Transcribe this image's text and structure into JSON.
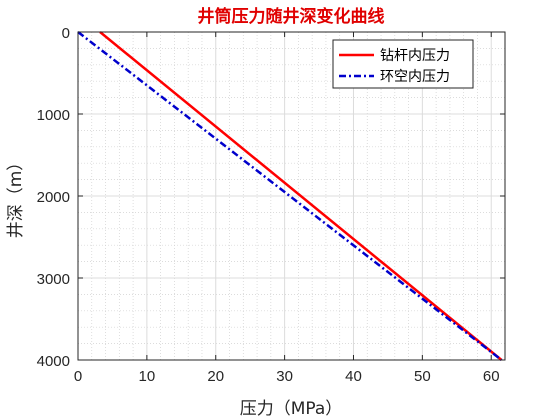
{
  "chart_data": {
    "type": "line",
    "title": "井筒压力随井深变化曲线",
    "xlabel": "压力（MPa）",
    "ylabel": "井深（m）",
    "xlim": [
      0,
      62
    ],
    "ylim": [
      0,
      4000
    ],
    "y_reversed": true,
    "x_ticks": [
      0,
      10,
      20,
      30,
      40,
      50,
      60
    ],
    "y_ticks": [
      0,
      1000,
      2000,
      3000,
      4000
    ],
    "grid": true,
    "minor_grid": true,
    "legend_position": "top-right",
    "series": [
      {
        "name": "钻杆内压力",
        "color": "#ff0000",
        "line_style": "solid",
        "points": [
          [
            3.2,
            0
          ],
          [
            61.5,
            4000
          ]
        ]
      },
      {
        "name": "环空内压力",
        "color": "#0000cc",
        "line_style": "dash-dot",
        "points": [
          [
            0,
            0
          ],
          [
            61.5,
            4000
          ]
        ]
      }
    ]
  }
}
